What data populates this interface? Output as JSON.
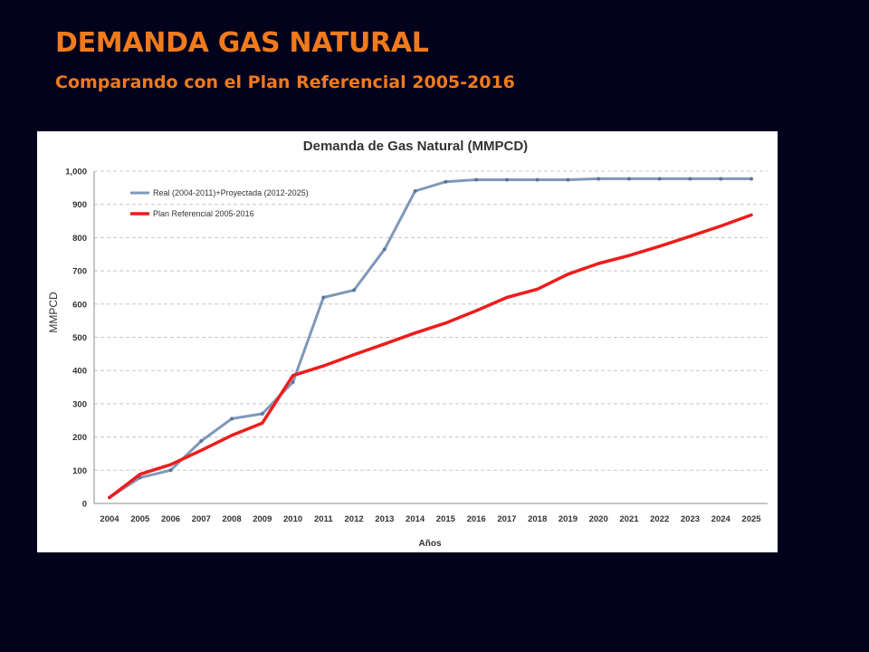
{
  "slide": {
    "title": "DEMANDA GAS NATURAL",
    "subtitle": "Comparando con el Plan Referencial 2005-2016"
  },
  "chart_data": {
    "type": "line",
    "title": "Demanda de Gas Natural (MMPCD)",
    "xlabel": "Años",
    "ylabel": "MMPCD",
    "ylim": [
      0,
      1000
    ],
    "yticks": [
      "0",
      "100",
      "200",
      "300",
      "400",
      "500",
      "600",
      "700",
      "800",
      "900",
      "1,000"
    ],
    "grid": true,
    "legend_position": "top-left",
    "categories": [
      "2004",
      "2005",
      "2006",
      "2007",
      "2008",
      "2009",
      "2010",
      "2011",
      "2012",
      "2013",
      "2014",
      "2015",
      "2016",
      "2017",
      "2018",
      "2019",
      "2020",
      "2021",
      "2022",
      "2023",
      "2024",
      "2025"
    ],
    "series": [
      {
        "name": "Real (2004-2011)+Proyectada (2012-2025)",
        "color": "#7f98b9",
        "values": [
          18,
          78,
          100,
          188,
          255,
          270,
          365,
          620,
          642,
          765,
          940,
          968,
          974,
          974,
          974,
          974,
          977,
          977,
          977,
          977,
          977,
          977
        ]
      },
      {
        "name": "Plan Referencial 2005-2016",
        "color": "#ee1c1c",
        "values": [
          18,
          88,
          117,
          160,
          205,
          242,
          385,
          414,
          448,
          480,
          513,
          543,
          580,
          620,
          645,
          690,
          722,
          746,
          774,
          804,
          835,
          868
        ]
      }
    ]
  }
}
